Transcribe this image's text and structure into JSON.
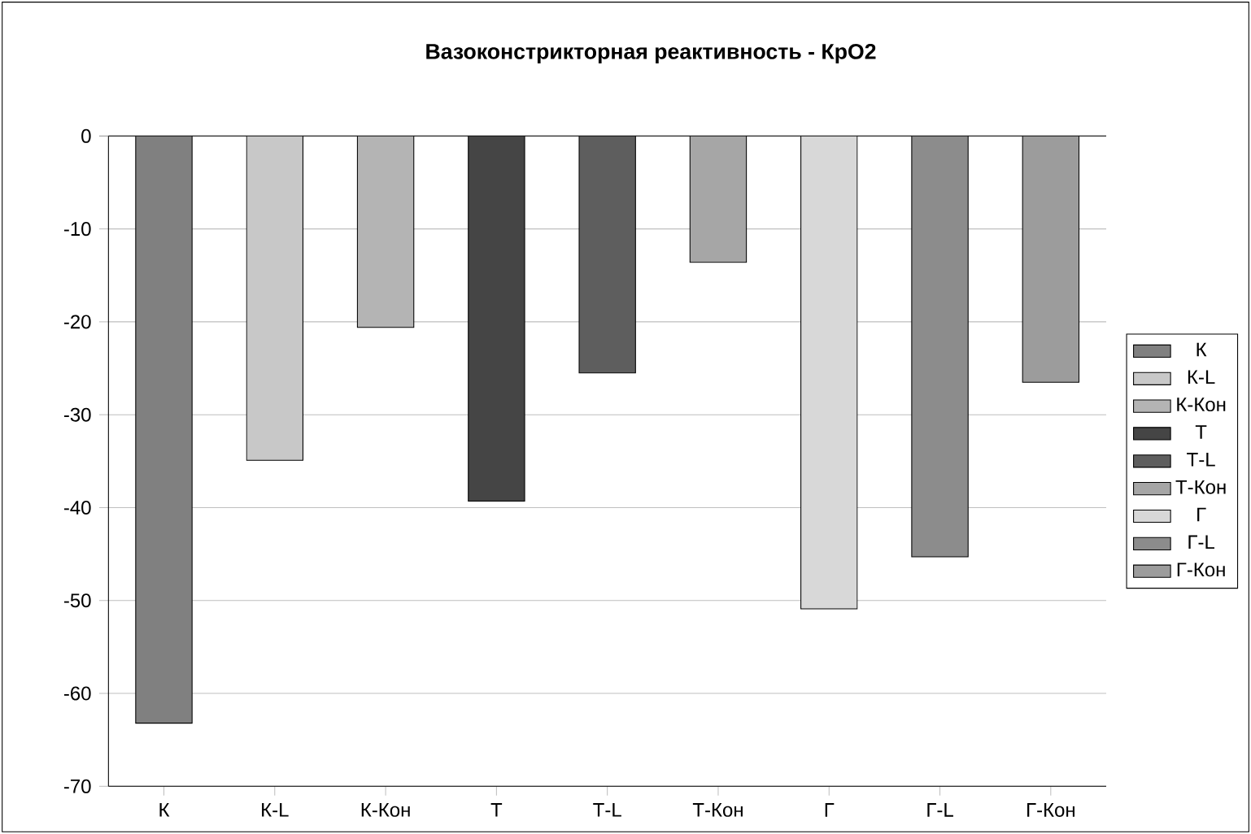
{
  "chart_data": {
    "type": "bar",
    "title": "Вазоконстрикторная реактивность - КрО2",
    "categories": [
      "К",
      "К-L",
      "К-Кон",
      "Т",
      "Т-L",
      "Т-Кон",
      "Г",
      "Г-L",
      "Г-Кон"
    ],
    "series": [
      {
        "name": "К",
        "color": "#808080",
        "values": [
          -63.2,
          null,
          null,
          null,
          null,
          null,
          null,
          null,
          null
        ]
      },
      {
        "name": "К-L",
        "color": "#c8c8c8",
        "values": [
          null,
          -34.9,
          null,
          null,
          null,
          null,
          null,
          null,
          null
        ]
      },
      {
        "name": "К-Кон",
        "color": "#b4b4b4",
        "values": [
          null,
          null,
          -20.6,
          null,
          null,
          null,
          null,
          null,
          null
        ]
      },
      {
        "name": "Т",
        "color": "#454545",
        "values": [
          null,
          null,
          null,
          -39.3,
          null,
          null,
          null,
          null,
          null
        ]
      },
      {
        "name": "Т-L",
        "color": "#5e5e5e",
        "values": [
          null,
          null,
          null,
          null,
          -25.5,
          null,
          null,
          null,
          null
        ]
      },
      {
        "name": "Т-Кон",
        "color": "#a6a6a6",
        "values": [
          null,
          null,
          null,
          null,
          null,
          -13.6,
          null,
          null,
          null
        ]
      },
      {
        "name": "Г",
        "color": "#d8d8d8",
        "values": [
          null,
          null,
          null,
          null,
          null,
          null,
          -50.9,
          null,
          null
        ]
      },
      {
        "name": "Г-L",
        "color": "#8c8c8c",
        "values": [
          null,
          null,
          null,
          null,
          null,
          null,
          null,
          -45.3,
          null
        ]
      },
      {
        "name": "Г-Кон",
        "color": "#9c9c9c",
        "values": [
          null,
          null,
          null,
          null,
          null,
          null,
          null,
          null,
          -26.5
        ]
      }
    ],
    "ylim": [
      -70,
      0
    ],
    "yticks": [
      0,
      -10,
      -20,
      -30,
      -40,
      -50,
      -60,
      -70
    ],
    "grid": "y",
    "legend": "right"
  }
}
